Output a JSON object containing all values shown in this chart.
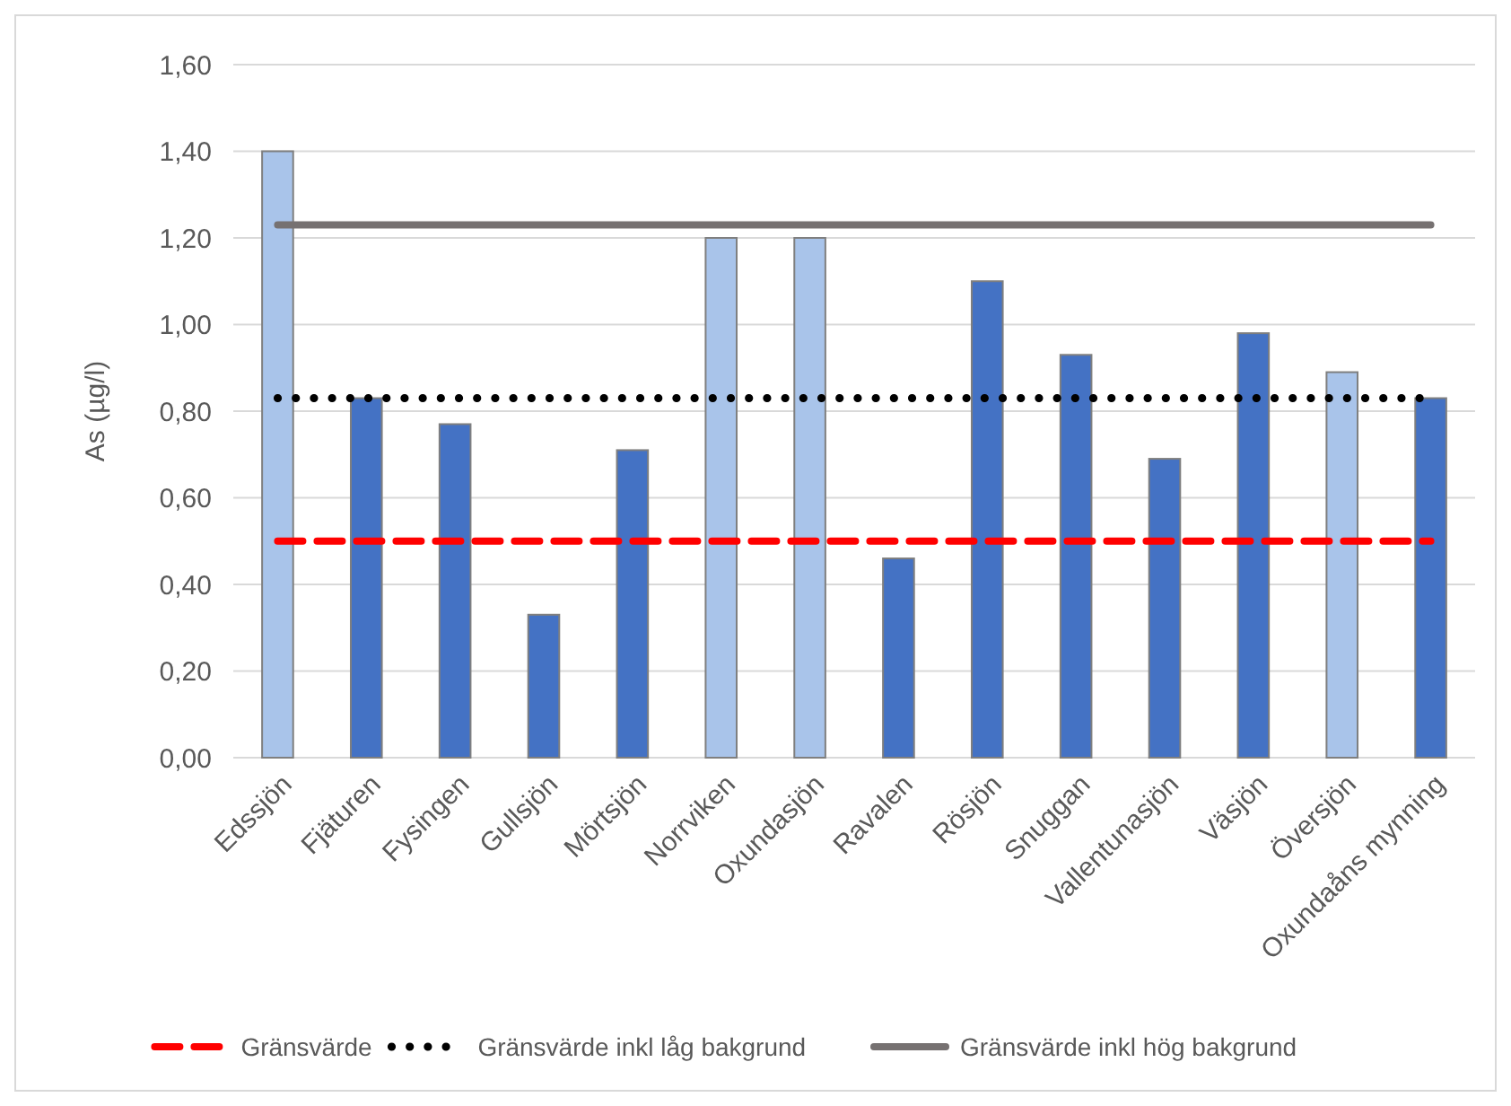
{
  "chart_data": {
    "type": "bar",
    "ylabel": "As (µg/l)",
    "categories": [
      "Edssjön",
      "Fjäturen",
      "Fysingen",
      "Gullsjön",
      "Mörtsjön",
      "Norrviken",
      "Oxundasjön",
      "Ravalen",
      "Rösjön",
      "Snuggan",
      "Vallentunasjön",
      "Väsjön",
      "Översjön",
      "Oxundaåns mynning"
    ],
    "series": [
      {
        "values": [
          1.4,
          0.83,
          0.77,
          0.33,
          0.71,
          1.2,
          1.2,
          0.46,
          1.1,
          0.93,
          0.69,
          0.98,
          0.89,
          0.83
        ],
        "colors": [
          "#a9c4ea",
          "#4472c4",
          "#4472c4",
          "#4472c4",
          "#4472c4",
          "#a9c4ea",
          "#a9c4ea",
          "#4472c4",
          "#4472c4",
          "#4472c4",
          "#4472c4",
          "#4472c4",
          "#a9c4ea",
          "#4472c4"
        ]
      },
      {
        "type": "line",
        "name": "Gränsvärde",
        "color": "#ff0000",
        "line_style": "dashed",
        "values": [
          0.5,
          0.5,
          0.5,
          0.5,
          0.5,
          0.5,
          0.5,
          0.5,
          0.5,
          0.5,
          0.5,
          0.5,
          0.5,
          0.5
        ]
      },
      {
        "type": "line",
        "name": "Gränsvärde inkl låg bakgrund",
        "color": "#000000",
        "line_style": "dotted",
        "values": [
          0.83,
          0.83,
          0.83,
          0.83,
          0.83,
          0.83,
          0.83,
          0.83,
          0.83,
          0.83,
          0.83,
          0.83,
          0.83,
          0.83
        ]
      },
      {
        "type": "line",
        "name": "Gränsvärde inkl hög bakgrund",
        "color": "#767171",
        "line_style": "solid",
        "values": [
          1.23,
          1.23,
          1.23,
          1.23,
          1.23,
          1.23,
          1.23,
          1.23,
          1.23,
          1.23,
          1.23,
          1.23,
          1.23,
          1.23
        ]
      }
    ],
    "ylim": [
      0,
      1.6
    ],
    "yticks": [
      {
        "value": 0,
        "label": "0,00"
      },
      {
        "value": 0.2,
        "label": "0,20"
      },
      {
        "value": 0.4,
        "label": "0,40"
      },
      {
        "value": 0.6,
        "label": "0,60"
      },
      {
        "value": 0.8,
        "label": "0,80"
      },
      {
        "value": 1.0,
        "label": "1,00"
      },
      {
        "value": 1.2,
        "label": "1,20"
      },
      {
        "value": 1.4,
        "label": "1,40"
      },
      {
        "value": 1.6,
        "label": "1,60"
      }
    ],
    "grid": "y",
    "legend": "bottom",
    "marker": "none"
  }
}
